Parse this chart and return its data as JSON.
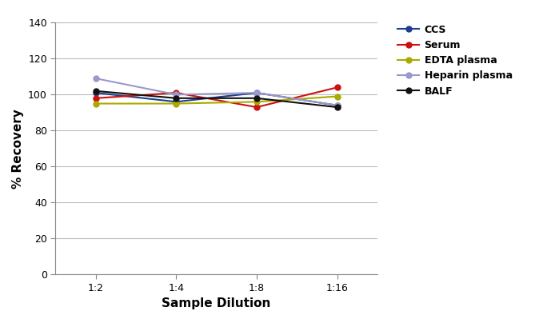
{
  "xlabel": "Sample Dilution",
  "ylabel": "% Recovery",
  "x_labels": [
    "1:2",
    "1:4",
    "1:8",
    "1:16"
  ],
  "x_values": [
    0,
    1,
    2,
    3
  ],
  "ylim": [
    0,
    140
  ],
  "yticks": [
    0,
    20,
    40,
    60,
    80,
    100,
    120,
    140
  ],
  "series": [
    {
      "label": "CCS",
      "color": "#1F3E8C",
      "marker": "o",
      "values": [
        101,
        96,
        101,
        94
      ]
    },
    {
      "label": "Serum",
      "color": "#CC1111",
      "marker": "o",
      "values": [
        98,
        101,
        93,
        104
      ]
    },
    {
      "label": "EDTA plasma",
      "color": "#AAAA00",
      "marker": "o",
      "values": [
        95,
        95,
        96,
        99
      ]
    },
    {
      "label": "Heparin plasma",
      "color": "#9999CC",
      "marker": "o",
      "values": [
        109,
        100,
        101,
        94
      ]
    },
    {
      "label": "BALF",
      "color": "#111111",
      "marker": "o",
      "values": [
        102,
        98,
        98,
        93
      ]
    }
  ],
  "bg_color": "#ffffff",
  "plot_bg_color": "#ffffff",
  "grid_color": "#bbbbbb",
  "legend_fontsize": 9,
  "axis_label_fontsize": 11,
  "tick_fontsize": 9,
  "linewidth": 1.5,
  "markersize": 5
}
